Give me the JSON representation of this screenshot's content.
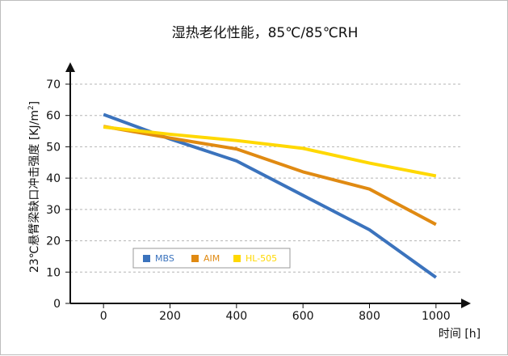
{
  "chart_data": {
    "type": "line",
    "title": "湿热老化性能，85℃/85℃RH",
    "xlabel": "时间 [h]",
    "ylabel_main": "23℃悬臂梁缺口冲击强度 [KJ/m",
    "ylabel_sup": "2",
    "ylabel_close": "]",
    "xlim": [
      -100,
      1100
    ],
    "ylim": [
      0,
      75
    ],
    "x_ticks": [
      0,
      200,
      400,
      600,
      800,
      1000
    ],
    "y_ticks": [
      0,
      10,
      20,
      30,
      40,
      50,
      60,
      70
    ],
    "grid": "horizontal-dashed",
    "legend_position": "bottom-left",
    "x": [
      0,
      200,
      400,
      600,
      800,
      1000
    ],
    "series": [
      {
        "name": "MBS",
        "color": "#3b73bd",
        "values": [
          60.3,
          52.5,
          45.5,
          34.5,
          23.5,
          8.3
        ]
      },
      {
        "name": "AIM",
        "color": "#e08a12",
        "values": [
          56.5,
          52.8,
          49.3,
          42.0,
          36.5,
          25.2
        ]
      },
      {
        "name": "HL-505",
        "color": "#ffd800",
        "values": [
          56.3,
          54.0,
          52.0,
          49.5,
          44.8,
          40.7
        ]
      }
    ]
  }
}
